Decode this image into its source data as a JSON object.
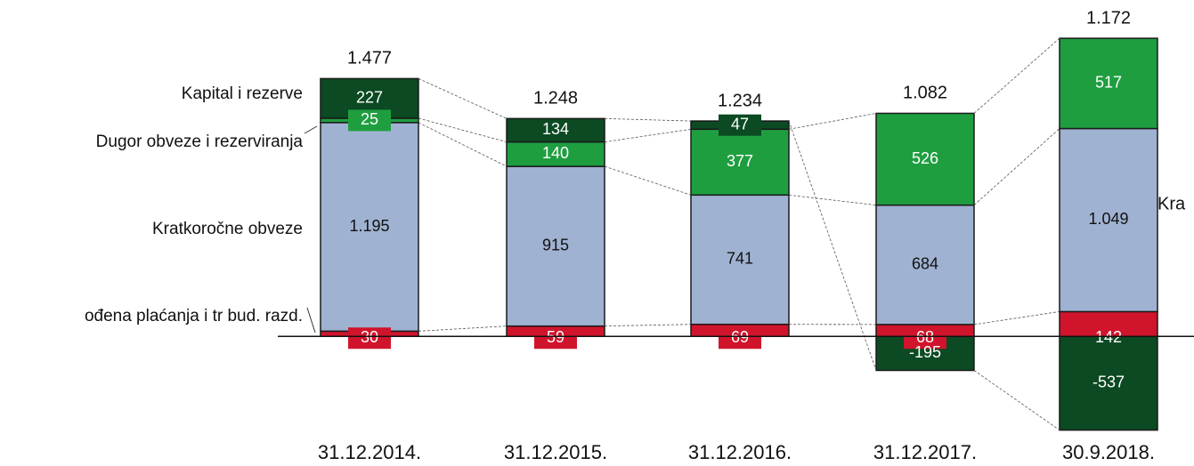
{
  "chart_data": {
    "type": "stacked_bar",
    "categories": [
      "31.12.2014.",
      "31.12.2015.",
      "31.12.2016.",
      "31.12.2017.",
      "30.9.2018."
    ],
    "series": [
      {
        "name": "ođena plaćanja i tr bud. razd.",
        "color": "#d0142c",
        "values": [
          30,
          59,
          69,
          68,
          142
        ]
      },
      {
        "name": "Kratkoročne obveze",
        "color": "#9fb2d1",
        "values": [
          1195,
          915,
          741,
          684,
          1049
        ],
        "value_labels": [
          "1.195",
          "915",
          "741",
          "684",
          "1.049"
        ]
      },
      {
        "name": "Dugor obveze i rezerviranja",
        "color": "#1f9e40",
        "values": [
          25,
          140,
          377,
          526,
          517
        ]
      },
      {
        "name": "Kapital i rezerve",
        "color": "#0b4a22",
        "values": [
          227,
          134,
          47,
          -195,
          -537
        ]
      }
    ],
    "totals": {
      "values": [
        1477,
        1248,
        1234,
        1082,
        1172
      ],
      "value_labels": [
        "1.477",
        "1.248",
        "1.234",
        "1.082",
        "1.172"
      ]
    },
    "annotations": [
      "Kra"
    ],
    "ylim": [
      -600,
      1800
    ]
  }
}
